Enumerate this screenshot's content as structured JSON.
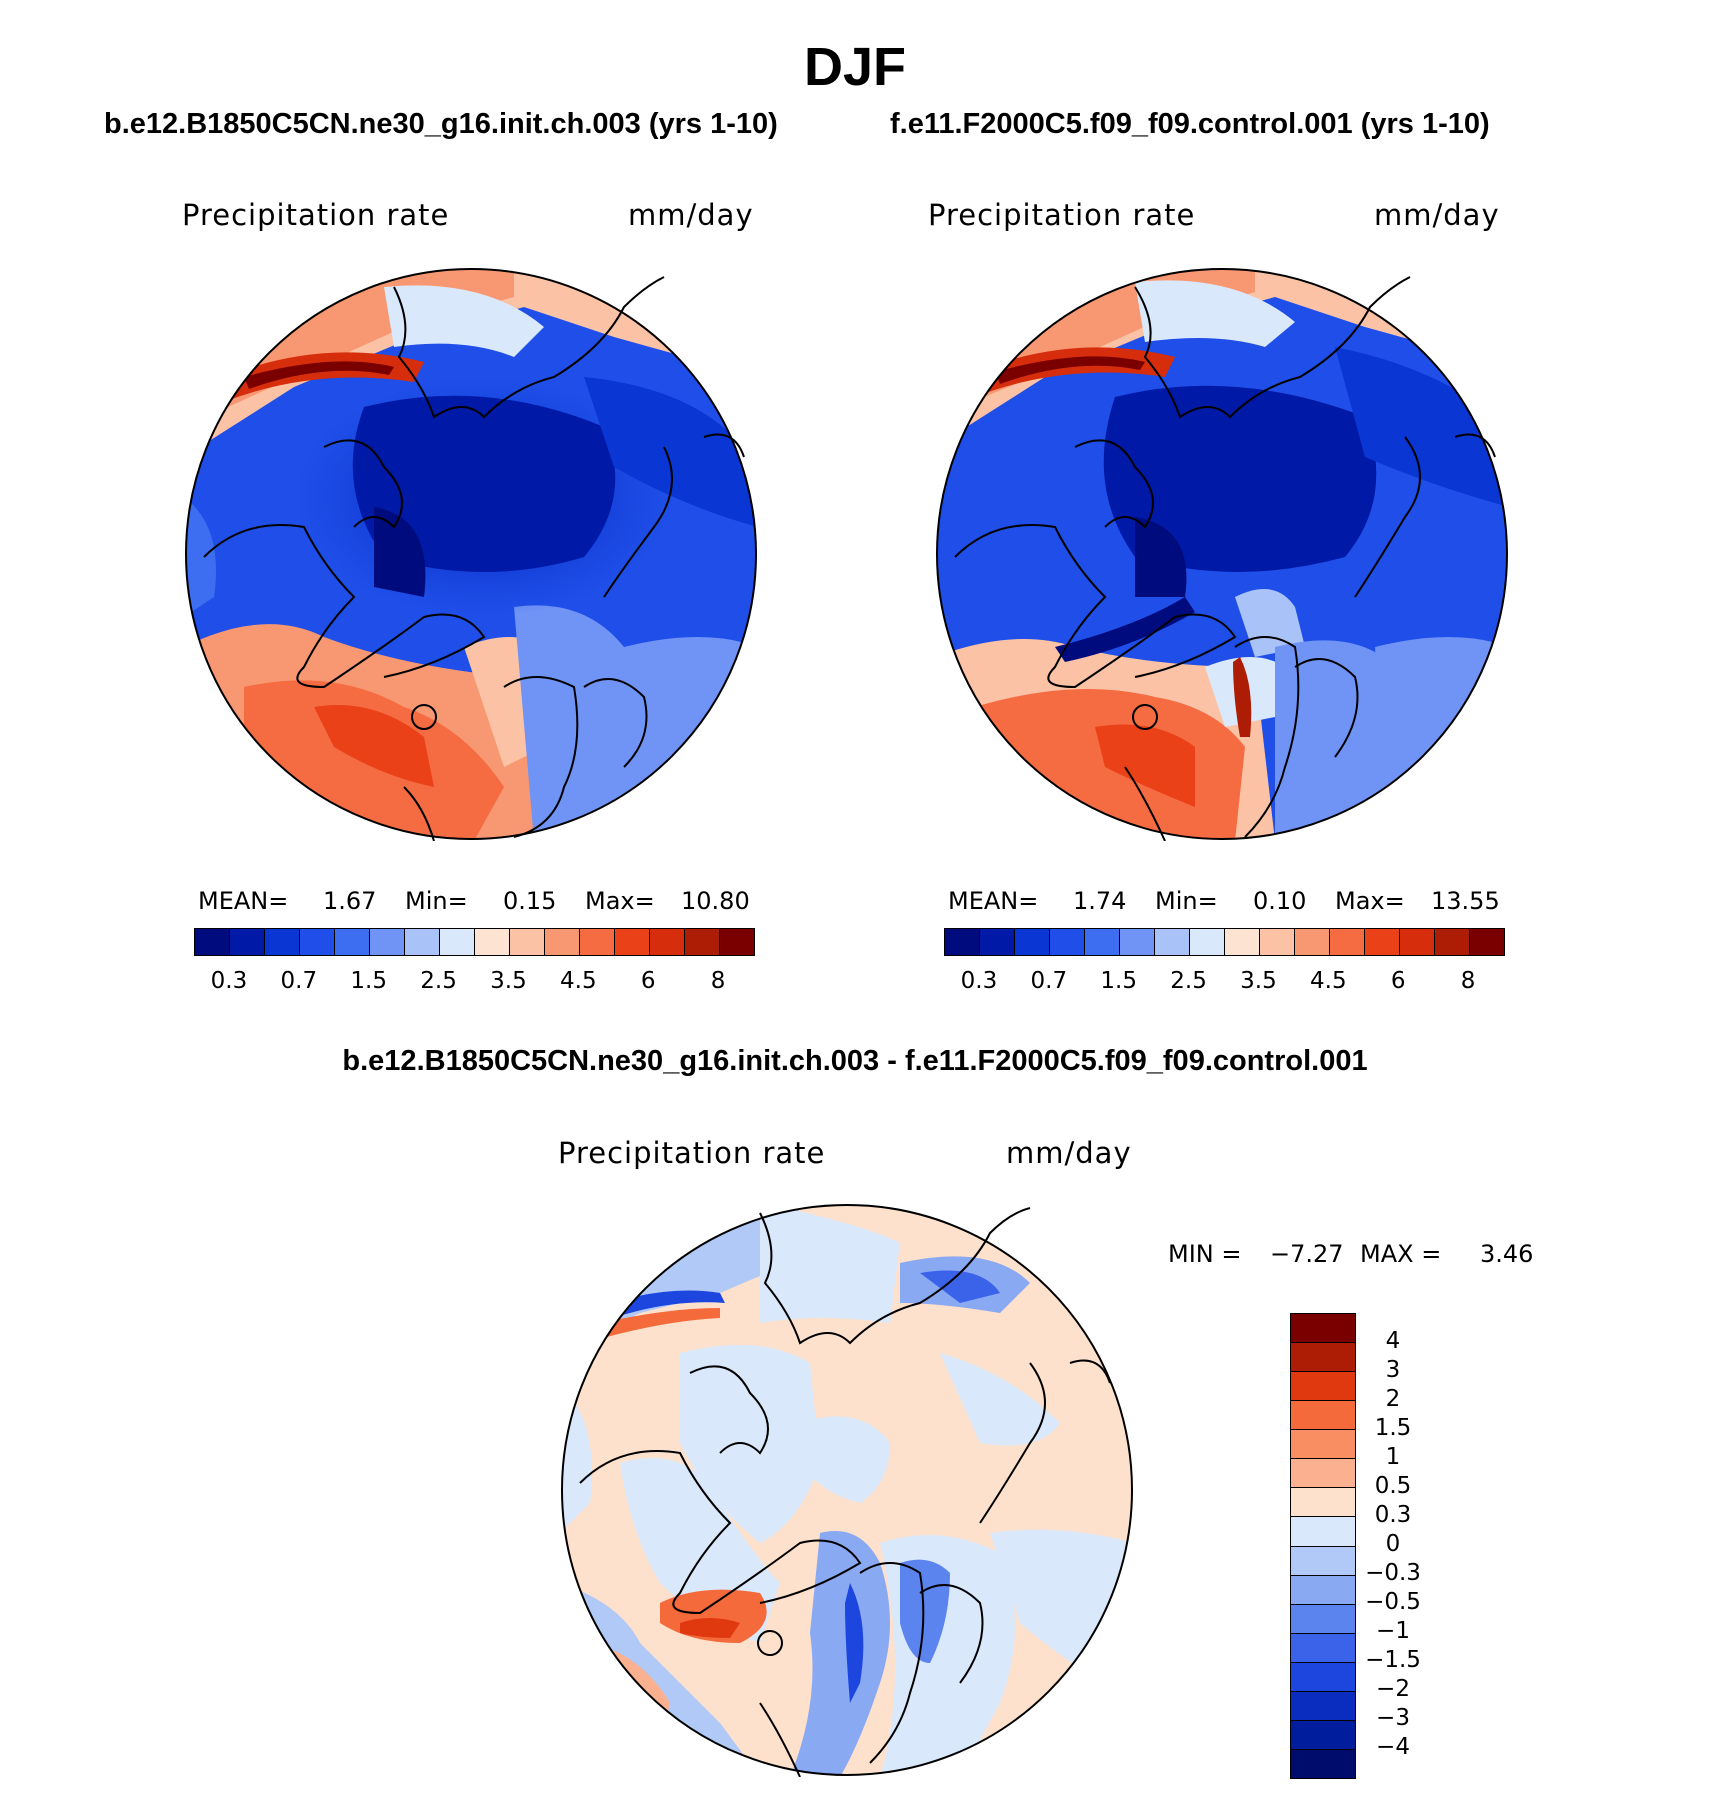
{
  "season_title": "DJF",
  "panels": [
    {
      "case": "b.e12.B1850C5CN.ne30_g16.init.ch.003 (yrs 1-10)",
      "variable": "Precipitation rate",
      "units": "mm/day",
      "mean_label": "MEAN=",
      "mean_value": "1.67",
      "min_label": "Min=",
      "min_value": "0.15",
      "max_label": "Max=",
      "max_value": "10.80"
    },
    {
      "case": "f.e11.F2000C5.f09_f09.control.001 (yrs 1-10)",
      "variable": "Precipitation rate",
      "units": "mm/day",
      "mean_label": "MEAN=",
      "mean_value": "1.74",
      "min_label": "Min=",
      "min_value": "0.10",
      "max_label": "Max=",
      "max_value": "13.55"
    }
  ],
  "difference": {
    "title": "b.e12.B1850C5CN.ne30_g16.init.ch.003 - f.e11.F2000C5.f09_f09.control.001",
    "variable": "Precipitation rate",
    "units": "mm/day",
    "min_label": "MIN =",
    "min_value": "−7.27",
    "max_label": "MAX =",
    "max_value": "3.46"
  },
  "colorbar_abs": {
    "colors": [
      "#000b7e",
      "#0019a6",
      "#0a36d4",
      "#1f4fe8",
      "#3d6df0",
      "#6f94f5",
      "#a9c2f7",
      "#dae8fb",
      "#fde4d2",
      "#fbc2a5",
      "#f89872",
      "#f56c43",
      "#ea4118",
      "#d62d0c",
      "#ad1d05",
      "#7a0000"
    ],
    "labels": [
      "0.3",
      "0.7",
      "1.5",
      "2.5",
      "3.5",
      "4.5",
      "6",
      "8"
    ]
  },
  "colorbar_diff": {
    "colors": [
      "#7a0000",
      "#ad1d05",
      "#e0380f",
      "#f56a3a",
      "#f88e62",
      "#fbb08f",
      "#fde1cc",
      "#dae8fb",
      "#b0c9f6",
      "#89a9f3",
      "#5b84ef",
      "#3a63ea",
      "#1d46df",
      "#0a2dc0",
      "#001d9e",
      "#000c6c"
    ],
    "labels": [
      "4",
      "3",
      "2",
      "1.5",
      "1",
      "0.5",
      "0.3",
      "0",
      "−0.3",
      "−0.5",
      "−1",
      "−1.5",
      "−2",
      "−3",
      "−4"
    ]
  }
}
